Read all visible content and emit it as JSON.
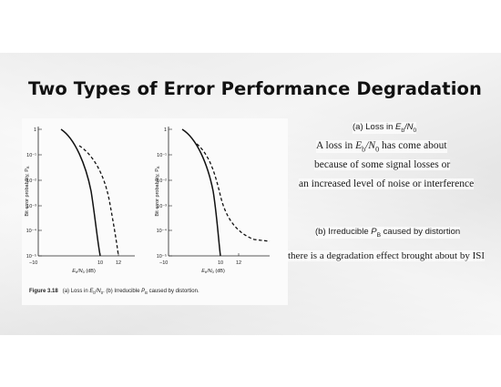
{
  "title": "Two Types of Error Performance Degradation",
  "figure": {
    "y_label": "Bit error probability, P",
    "y_label_sub": "B",
    "y_ticks": [
      "1",
      "10⁻¹",
      "10⁻²",
      "10⁻³",
      "10⁻⁴",
      "10⁻⁵"
    ],
    "x_ticks": [
      "−10",
      "10",
      "12"
    ],
    "x_label": "E",
    "x_label_sub1": "b",
    "x_label_mid": "/N",
    "x_label_sub2": "0",
    "x_label_unit": " (dB)",
    "caption_label": "Figure 3.18",
    "caption_a": "(a) Loss in ",
    "caption_a_var": "E",
    "caption_a_sub1": "b",
    "caption_a_mid": "/N",
    "caption_a_sub2": "0",
    "caption_b": ". (b) Irreducible ",
    "caption_b_var": "P",
    "caption_b_sub": "B",
    "caption_b_rest": " caused by distortion."
  },
  "annotations": {
    "a_heading_prefix": "(a) Loss in ",
    "a_heading_var": "E",
    "a_heading_sub1": "b",
    "a_heading_mid": "/N",
    "a_heading_sub2": "0",
    "a_line1_prefix": "A loss in ",
    "a_line1_var": "E",
    "a_line1_sub1": "b",
    "a_line1_mid": "/N",
    "a_line1_sub2": "0",
    "a_line1_rest": " has come about",
    "a_line2": "because of some signal losses or",
    "a_line3": "an increased level of noise or interference",
    "b_heading_prefix": "(b) Irreducible ",
    "b_heading_var": "P",
    "b_heading_sub": "B",
    "b_heading_rest": " caused by distortion",
    "b_line1": "there is a degradation effect brought about by ISI"
  },
  "colors": {
    "band": "#ececec",
    "text": "#111111"
  }
}
